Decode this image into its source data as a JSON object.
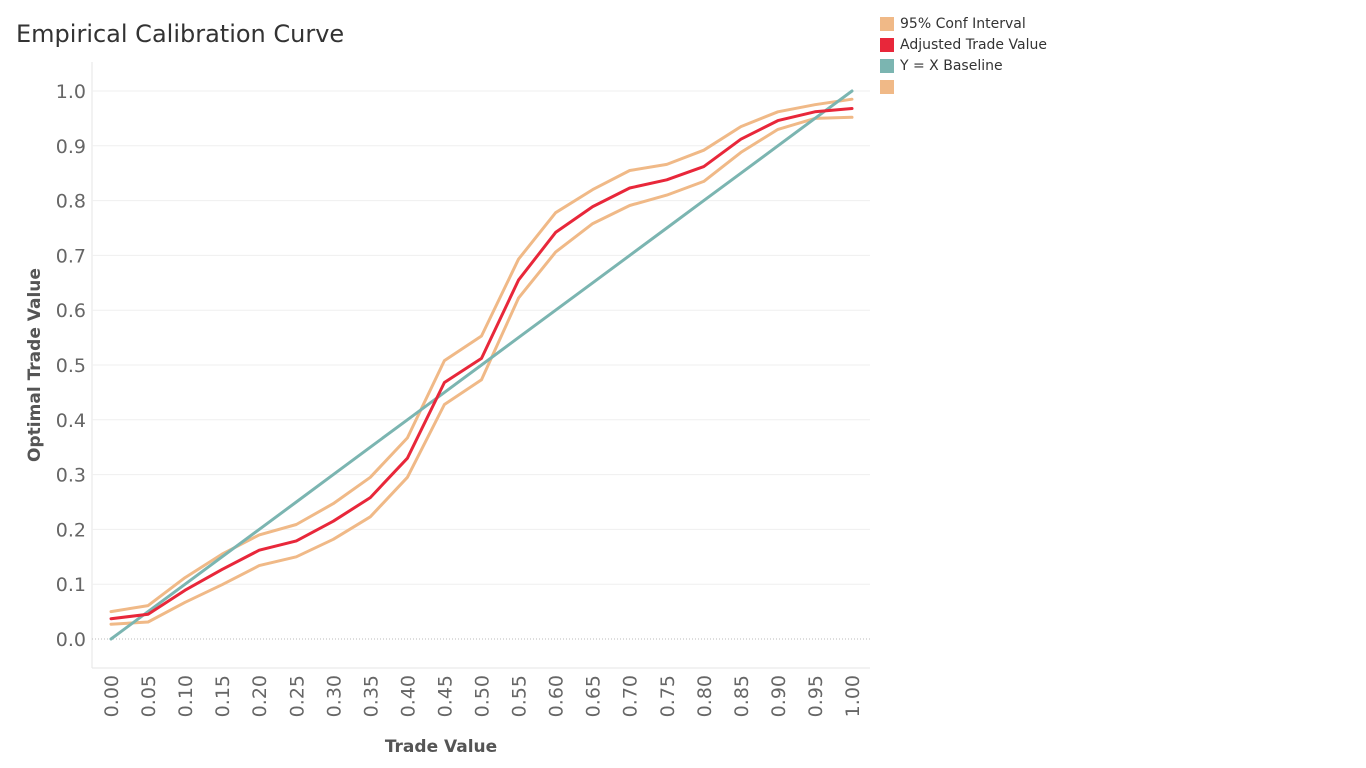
{
  "chart_data": {
    "type": "line",
    "title": "Empirical Calibration Curve",
    "xlabel": "Trade Value",
    "ylabel": "Optimal Trade Value",
    "xlim": [
      0,
      1
    ],
    "ylim": [
      0,
      1
    ],
    "x": [
      0.0,
      0.05,
      0.1,
      0.15,
      0.2,
      0.25,
      0.3,
      0.35,
      0.4,
      0.45,
      0.5,
      0.55,
      0.6,
      0.65,
      0.7,
      0.75,
      0.8,
      0.85,
      0.9,
      0.95,
      1.0
    ],
    "x_ticks": [
      "0.00",
      "0.05",
      "0.10",
      "0.15",
      "0.20",
      "0.25",
      "0.30",
      "0.35",
      "0.40",
      "0.45",
      "0.50",
      "0.55",
      "0.60",
      "0.65",
      "0.70",
      "0.75",
      "0.80",
      "0.85",
      "0.90",
      "0.95",
      "1.00"
    ],
    "y_ticks": [
      "0.0",
      "0.1",
      "0.2",
      "0.3",
      "0.4",
      "0.5",
      "0.6",
      "0.7",
      "0.8",
      "0.9",
      "1.0"
    ],
    "series": [
      {
        "name": "95% Conf Interval",
        "color": "#f0b987",
        "values": [
          0.05,
          0.061,
          0.112,
          0.155,
          0.19,
          0.209,
          0.247,
          0.295,
          0.367,
          0.508,
          0.553,
          0.693,
          0.778,
          0.82,
          0.855,
          0.866,
          0.892,
          0.935,
          0.962,
          0.975,
          0.985
        ]
      },
      {
        "name": "",
        "color": "#f0b987",
        "values": [
          0.027,
          0.031,
          0.067,
          0.099,
          0.134,
          0.15,
          0.182,
          0.223,
          0.295,
          0.428,
          0.473,
          0.622,
          0.706,
          0.758,
          0.791,
          0.81,
          0.835,
          0.888,
          0.93,
          0.95,
          0.952
        ]
      },
      {
        "name": "Y = X Baseline",
        "color": "#7bb5b1",
        "values": [
          0.0,
          0.05,
          0.1,
          0.15,
          0.2,
          0.25,
          0.3,
          0.35,
          0.4,
          0.45,
          0.5,
          0.55,
          0.6,
          0.65,
          0.7,
          0.75,
          0.8,
          0.85,
          0.9,
          0.95,
          1.0
        ]
      },
      {
        "name": "Adjusted Trade Value",
        "color": "#e8273a",
        "values": [
          0.037,
          0.045,
          0.089,
          0.127,
          0.162,
          0.179,
          0.215,
          0.258,
          0.33,
          0.468,
          0.512,
          0.655,
          0.742,
          0.789,
          0.823,
          0.838,
          0.862,
          0.912,
          0.946,
          0.962,
          0.968
        ]
      }
    ],
    "legend": [
      {
        "label": "95% Conf Interval",
        "color": "#f0b987"
      },
      {
        "label": "Adjusted Trade Value",
        "color": "#e8273a"
      },
      {
        "label": "Y = X Baseline",
        "color": "#7bb5b1"
      },
      {
        "label": "",
        "color": "#f0b987"
      }
    ],
    "grid": true,
    "legend_position": "top-right"
  }
}
